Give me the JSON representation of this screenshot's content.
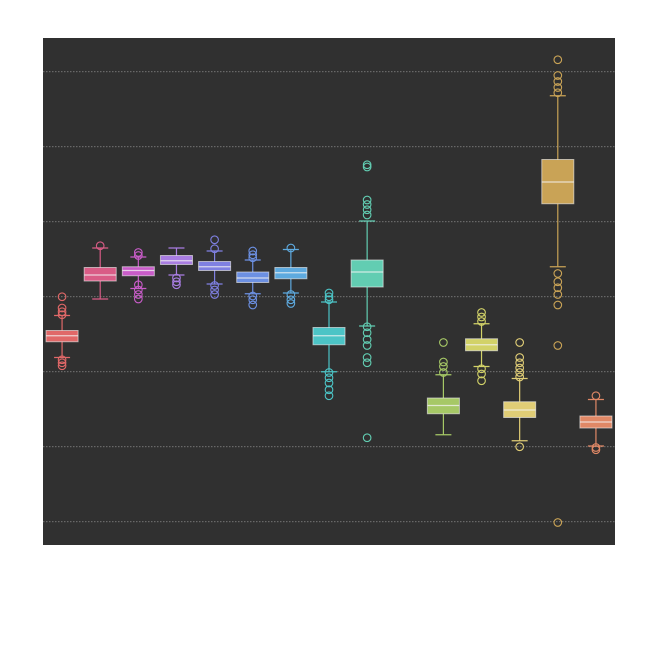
{
  "chart_data": {
    "type": "box",
    "categories": [
      null,
      null,
      null,
      null,
      null,
      null,
      null,
      null,
      null,
      null,
      null,
      null,
      null,
      null,
      null
    ],
    "ylim": [
      -0.31,
      6.45
    ],
    "yticks": [
      0,
      1,
      2,
      3,
      4,
      5,
      6
    ],
    "grid": true,
    "boxes": [
      {
        "color": "#e06868",
        "whislo": 2.19,
        "q1": 2.4,
        "med": 2.48,
        "q3": 2.55,
        "whishi": 2.75,
        "fliers": [
          3.0,
          2.85,
          2.8,
          2.76,
          2.16,
          2.12,
          2.08
        ]
      },
      {
        "color": "#d95c86",
        "whislo": 2.97,
        "q1": 3.21,
        "med": 3.29,
        "q3": 3.39,
        "whishi": 3.65,
        "fliers": [
          3.68
        ]
      },
      {
        "color": "#c85cc8",
        "whislo": 3.11,
        "q1": 3.28,
        "med": 3.35,
        "q3": 3.4,
        "whishi": 3.53,
        "fliers": [
          3.59,
          3.55,
          3.16,
          3.09,
          3.03,
          2.97
        ]
      },
      {
        "color": "#a97de2",
        "whislo": 3.29,
        "q1": 3.43,
        "med": 3.48,
        "q3": 3.55,
        "whishi": 3.65,
        "fliers": [
          3.25,
          3.2,
          3.16
        ]
      },
      {
        "color": "#7f80e2",
        "whislo": 3.17,
        "q1": 3.35,
        "med": 3.4,
        "q3": 3.47,
        "whishi": 3.61,
        "fliers": [
          3.76,
          3.64,
          3.15,
          3.09,
          3.03
        ]
      },
      {
        "color": "#6c90e2",
        "whislo": 3.04,
        "q1": 3.19,
        "med": 3.25,
        "q3": 3.33,
        "whishi": 3.49,
        "fliers": [
          3.61,
          3.56,
          3.52,
          3.01,
          2.96,
          2.89
        ]
      },
      {
        "color": "#5eaadf",
        "whislo": 3.05,
        "q1": 3.24,
        "med": 3.32,
        "q3": 3.39,
        "whishi": 3.63,
        "fliers": [
          3.65,
          3.03,
          2.96,
          2.91
        ]
      },
      {
        "color": "#4cc4c6",
        "whislo": 2.0,
        "q1": 2.36,
        "med": 2.48,
        "q3": 2.59,
        "whishi": 2.93,
        "fliers": [
          3.05,
          3.0,
          2.96,
          1.99,
          1.92,
          1.85,
          1.76,
          1.68
        ]
      },
      {
        "color": "#62cdb2",
        "whislo": 2.61,
        "q1": 3.13,
        "med": 3.33,
        "q3": 3.49,
        "whishi": 4.01,
        "fliers": [
          4.76,
          4.73,
          4.29,
          4.23,
          4.16,
          4.09,
          2.6,
          2.52,
          2.43,
          2.35,
          2.19,
          2.12,
          1.12
        ]
      },
      null,
      {
        "color": "#a6c866",
        "whislo": 1.16,
        "q1": 1.44,
        "med": 1.55,
        "q3": 1.65,
        "whishi": 1.96,
        "fliers": [
          2.39,
          2.13,
          2.07,
          1.99
        ]
      },
      {
        "color": "#d2d268",
        "whislo": 2.07,
        "q1": 2.28,
        "med": 2.36,
        "q3": 2.44,
        "whishi": 2.64,
        "fliers": [
          2.79,
          2.73,
          2.67,
          2.04,
          1.97,
          1.88
        ]
      },
      {
        "color": "#e0cd76",
        "whislo": 1.08,
        "q1": 1.39,
        "med": 1.49,
        "q3": 1.6,
        "whishi": 1.91,
        "fliers": [
          2.39,
          2.19,
          2.12,
          2.05,
          1.99,
          1.93,
          1.0
        ]
      },
      {
        "color": "#c9a356",
        "whislo": 3.4,
        "q1": 4.24,
        "med": 4.53,
        "q3": 4.83,
        "whishi": 5.68,
        "fliers": [
          6.16,
          5.95,
          5.87,
          5.79,
          5.72,
          3.31,
          3.2,
          3.12,
          3.03,
          2.89,
          2.35,
          -0.01
        ]
      },
      {
        "color": "#e08866",
        "whislo": 1.01,
        "q1": 1.25,
        "med": 1.33,
        "q3": 1.41,
        "whishi": 1.63,
        "fliers": [
          1.68,
          0.99,
          0.96
        ]
      }
    ]
  }
}
